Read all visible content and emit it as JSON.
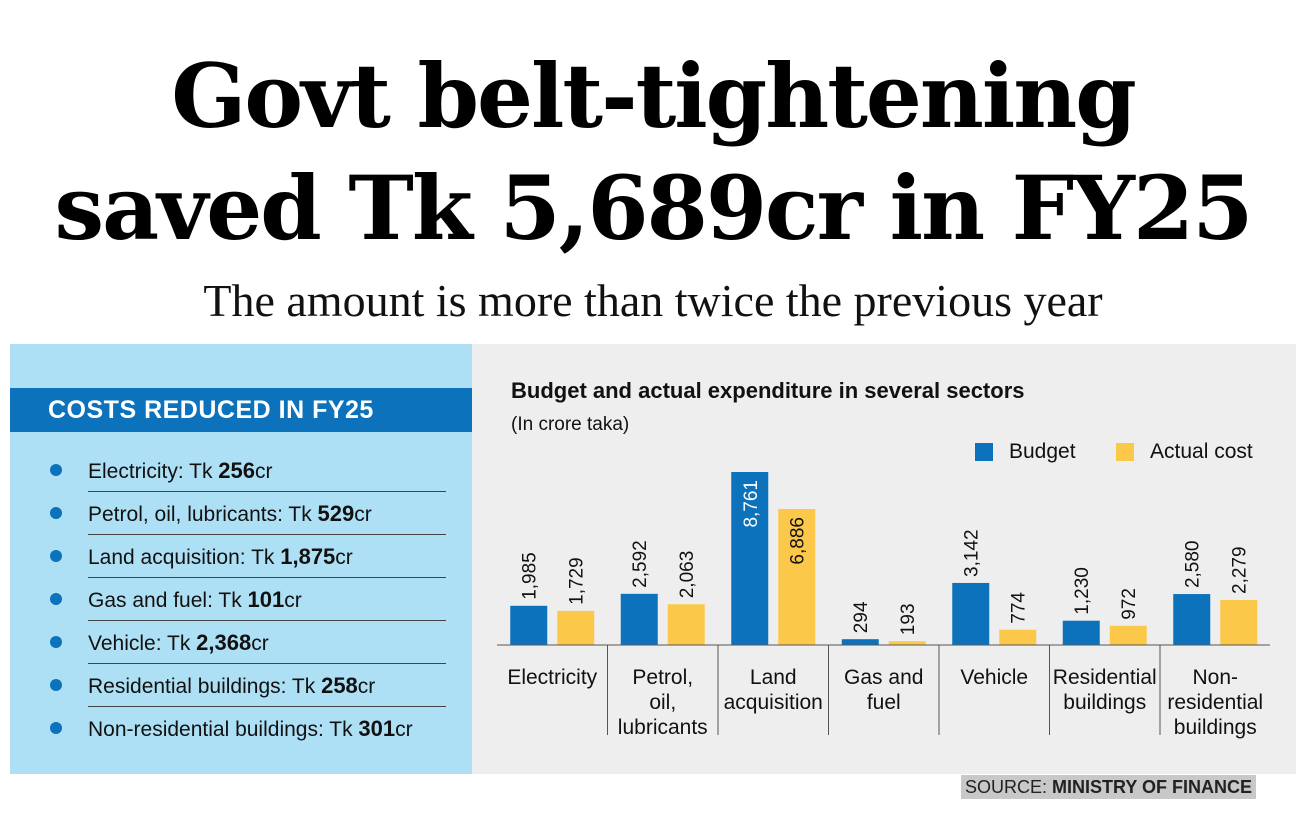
{
  "headline": {
    "line1": "Govt belt-tightening",
    "line2": "saved Tk 5,689cr in FY25",
    "subhead": "The amount is more than twice the previous year"
  },
  "costs_panel": {
    "title": "COSTS REDUCED IN FY25",
    "items": [
      {
        "label": "Electricity: Tk ",
        "value": "256",
        "unit": "cr"
      },
      {
        "label": "Petrol, oil, lubricants: Tk ",
        "value": "529",
        "unit": "cr"
      },
      {
        "label": "Land acquisition: Tk ",
        "value": "1,875",
        "unit": "cr"
      },
      {
        "label": "Gas and fuel: Tk ",
        "value": "101",
        "unit": "cr"
      },
      {
        "label": "Vehicle: Tk ",
        "value": "2,368",
        "unit": "cr"
      },
      {
        "label": "Residential buildings: Tk ",
        "value": "258",
        "unit": "cr"
      },
      {
        "label": "Non-residential buildings: Tk ",
        "value": "301",
        "unit": "cr"
      }
    ]
  },
  "source": {
    "prefix": "SOURCE: ",
    "name": "MINISTRY OF FINANCE"
  },
  "colors": {
    "budget": "#0b72bb",
    "actual": "#fcc84a",
    "panel_left": "#aee0f5",
    "panel_right": "#eeeeee"
  },
  "chart_data": {
    "type": "bar",
    "title": "Budget and actual expenditure in several sectors",
    "subtitle": "(In crore taka)",
    "categories": [
      [
        "Electricity"
      ],
      [
        "Petrol,",
        "oil,",
        "lubricants"
      ],
      [
        "Land",
        "acquisition"
      ],
      [
        "Gas and",
        "fuel"
      ],
      [
        "Vehicle"
      ],
      [
        "Residential",
        "buildings"
      ],
      [
        "Non-",
        "residential",
        "buildings"
      ]
    ],
    "series": [
      {
        "name": "Budget",
        "values": [
          1985,
          2592,
          8761,
          294,
          3142,
          1230,
          2580
        ],
        "labels": [
          "1,985",
          "2,592",
          "8,761",
          "294",
          "3,142",
          "1,230",
          "2,580"
        ]
      },
      {
        "name": "Actual cost",
        "values": [
          1729,
          2063,
          6886,
          193,
          774,
          972,
          2279
        ],
        "labels": [
          "1,729",
          "2,063",
          "6,886",
          "193",
          "774",
          "972",
          "2,279"
        ]
      }
    ],
    "xlabel": "",
    "ylabel": "",
    "ylim": [
      0,
      8761
    ],
    "legend": "top-right",
    "grid": false
  }
}
